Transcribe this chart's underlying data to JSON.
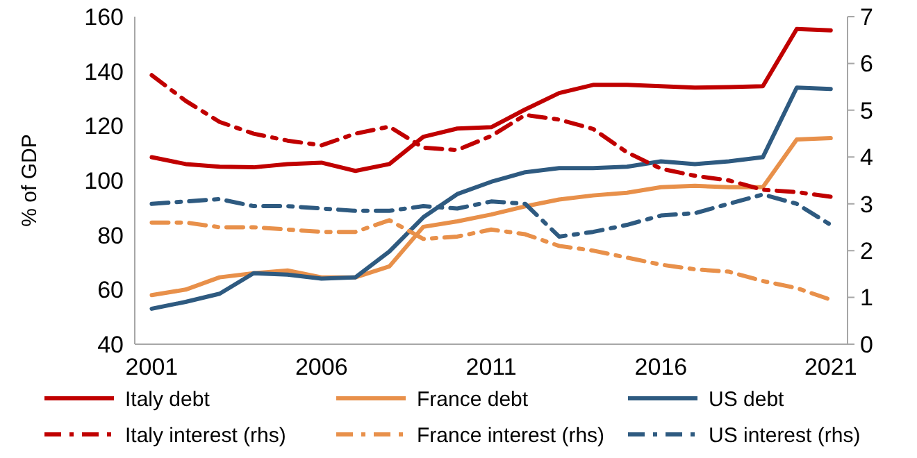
{
  "chart_data": {
    "type": "line",
    "ylabel": "% of GDP",
    "x": [
      2001,
      2002,
      2003,
      2004,
      2005,
      2006,
      2007,
      2008,
      2009,
      2010,
      2011,
      2012,
      2013,
      2014,
      2015,
      2016,
      2017,
      2018,
      2019,
      2020,
      2021
    ],
    "xlim": [
      2000.5,
      2021.7
    ],
    "xticks": [
      2001,
      2006,
      2011,
      2016,
      2021
    ],
    "ylim": [
      40,
      160
    ],
    "yticks": [
      40,
      60,
      80,
      100,
      120,
      140,
      160
    ],
    "y2lim": [
      0,
      7
    ],
    "y2ticks": [
      0,
      1,
      2,
      3,
      4,
      5,
      6,
      7
    ],
    "grid": false,
    "legend": "bottom",
    "marker": "none",
    "series": [
      {
        "name": "Italy debt",
        "color": "#c00000",
        "line_style": "solid",
        "values": [
          108.5,
          106,
          105,
          104.8,
          106,
          106.5,
          103.5,
          106,
          116,
          119,
          119.5,
          126,
          132,
          135,
          135,
          134.5,
          134,
          134.2,
          134.5,
          155.5,
          155
        ]
      },
      {
        "name": "France debt",
        "color": "#e8904a",
        "line_style": "solid",
        "values": [
          58,
          60,
          64.5,
          66,
          67,
          64.5,
          64.5,
          68.5,
          83,
          85,
          87.5,
          90.5,
          93,
          94.5,
          95.5,
          97.5,
          98,
          97.5,
          97.5,
          115,
          115.5
        ]
      },
      {
        "name": "US debt",
        "color": "#2e5a80",
        "line_style": "solid",
        "values": [
          53,
          55.5,
          58.5,
          66,
          65.5,
          64,
          64.5,
          74,
          86.5,
          95,
          99.5,
          103,
          104.5,
          104.5,
          105,
          107,
          106,
          107,
          108.5,
          134,
          133.5
        ]
      },
      {
        "name": "Italy interest (rhs)",
        "color": "#c00000",
        "line_style": "dashdot",
        "axis": "y2",
        "values": [
          5.75,
          5.2,
          4.75,
          4.5,
          4.35,
          4.25,
          4.5,
          4.65,
          4.2,
          4.15,
          4.45,
          4.9,
          4.8,
          4.6,
          4.1,
          3.75,
          3.6,
          3.5,
          3.3,
          3.25,
          3.15
        ]
      },
      {
        "name": "France interest (rhs)",
        "color": "#e8904a",
        "line_style": "dashdot",
        "axis": "y2",
        "values": [
          2.6,
          2.6,
          2.5,
          2.5,
          2.45,
          2.4,
          2.4,
          2.65,
          2.25,
          2.3,
          2.45,
          2.35,
          2.1,
          2.0,
          1.85,
          1.7,
          1.6,
          1.55,
          1.35,
          1.2,
          0.95
        ]
      },
      {
        "name": "US interest (rhs)",
        "color": "#2e5a80",
        "line_style": "dashdot",
        "axis": "y2",
        "values": [
          3.0,
          3.05,
          3.1,
          2.95,
          2.95,
          2.9,
          2.85,
          2.85,
          2.95,
          2.9,
          3.05,
          3.0,
          2.3,
          2.4,
          2.55,
          2.75,
          2.8,
          3.0,
          3.2,
          3.0,
          2.55
        ]
      }
    ]
  }
}
